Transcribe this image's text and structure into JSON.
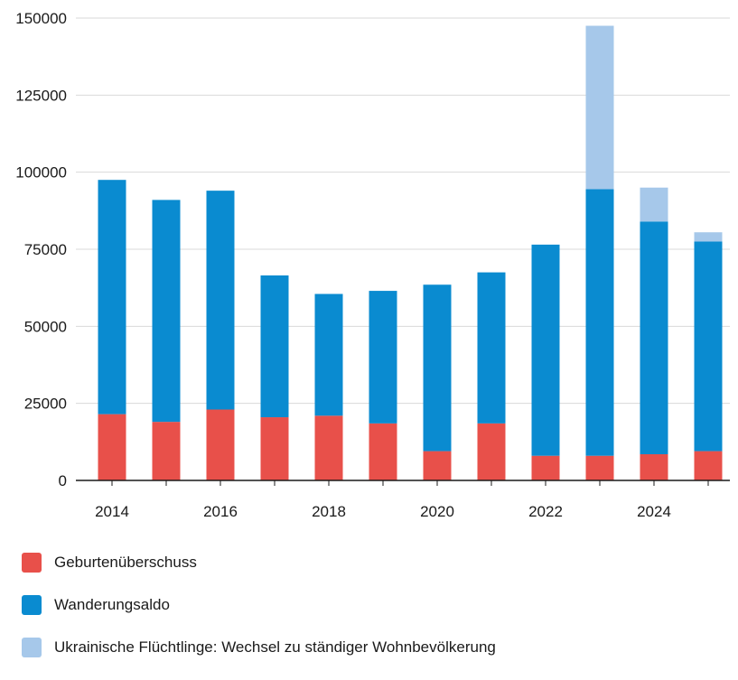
{
  "chart_data": {
    "type": "bar",
    "stacked": true,
    "x": [
      2014,
      2015,
      2016,
      2017,
      2018,
      2019,
      2020,
      2021,
      2022,
      2023,
      2024,
      2025
    ],
    "x_tick_labels": [
      "2014",
      "2016",
      "2018",
      "2020",
      "2022",
      "2024"
    ],
    "y_tick_labels": [
      "0",
      "25000",
      "50000",
      "75000",
      "100000",
      "125000",
      "150000"
    ],
    "ylim": [
      0,
      150000
    ],
    "grid": true,
    "legend_position": "bottom",
    "series": [
      {
        "name": "Geburtenüberschuss",
        "color": "#e8504a",
        "values": [
          21500,
          19000,
          23000,
          20500,
          21000,
          18500,
          9500,
          18500,
          8000,
          8000,
          8500,
          9500
        ]
      },
      {
        "name": "Wanderungsaldo",
        "color": "#0a8bd0",
        "values": [
          76000,
          72000,
          71000,
          46000,
          39500,
          43000,
          54000,
          49000,
          68500,
          86500,
          75500,
          68000
        ]
      },
      {
        "name": "Ukrainische Flüchtlinge: Wechsel zu ständiger Wohnbevölkerung",
        "color": "#a6c8ea",
        "values": [
          0,
          0,
          0,
          0,
          0,
          0,
          0,
          0,
          0,
          53000,
          11000,
          3000
        ]
      }
    ]
  }
}
